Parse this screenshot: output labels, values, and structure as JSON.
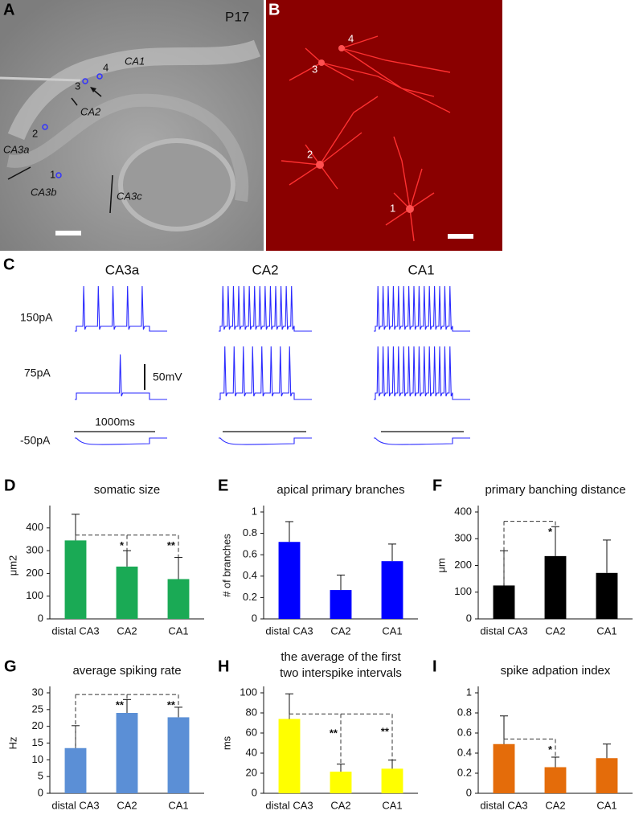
{
  "panel_labels": [
    "A",
    "B",
    "C",
    "D",
    "E",
    "F",
    "G",
    "H",
    "I"
  ],
  "panel_a": {
    "age": "P17",
    "regions": [
      "CA1",
      "CA2",
      "CA3a",
      "CA3b",
      "CA3c"
    ],
    "cells": [
      "1",
      "2",
      "3",
      "4"
    ]
  },
  "panel_b": {
    "cells": [
      "1",
      "2",
      "3",
      "4"
    ]
  },
  "panel_c": {
    "columns": [
      "CA3a",
      "CA2",
      "CA1"
    ],
    "rows": [
      "150pA",
      "75pA",
      "-50pA"
    ],
    "scale_voltage": "50mV",
    "scale_time": "1000ms"
  },
  "chart_data": [
    {
      "type": "bar",
      "title": "somatic size",
      "ylabel": "μm2",
      "categories": [
        "distal CA3",
        "CA2",
        "CA1"
      ],
      "values": [
        345,
        230,
        175
      ],
      "errors": [
        115,
        70,
        95
      ],
      "color": "#1aaa55",
      "ylim": [
        0,
        470
      ],
      "yticks": [
        0,
        100,
        200,
        300,
        400
      ],
      "significance": [
        {
          "from": 0,
          "to": 1,
          "label": "*"
        },
        {
          "from": 0,
          "to": 2,
          "label": "**"
        }
      ]
    },
    {
      "type": "bar",
      "title": "apical primary branches",
      "ylabel": "# of branches",
      "categories": [
        "distal CA3",
        "CA2",
        "CA1"
      ],
      "values": [
        0.72,
        0.27,
        0.54
      ],
      "errors": [
        0.19,
        0.14,
        0.16
      ],
      "color": "#0000ff",
      "ylim": [
        0,
        1
      ],
      "yticks": [
        0,
        0.2,
        0.4,
        0.6,
        0.8,
        1
      ]
    },
    {
      "type": "bar",
      "title": "primary banching distance",
      "ylabel": "μm",
      "categories": [
        "distal CA3",
        "CA2",
        "CA1"
      ],
      "values": [
        125,
        235,
        172
      ],
      "errors": [
        130,
        110,
        123
      ],
      "color": "#000000",
      "ylim": [
        0,
        400
      ],
      "yticks": [
        0,
        100,
        200,
        300,
        400
      ],
      "significance": [
        {
          "from": 0,
          "to": 1,
          "label": "*"
        }
      ]
    },
    {
      "type": "bar",
      "title": "average spiking rate",
      "ylabel": "Hz",
      "categories": [
        "distal CA3",
        "CA2",
        "CA1"
      ],
      "values": [
        13.5,
        24,
        22.7
      ],
      "errors": [
        6.7,
        4,
        3
      ],
      "color": "#5b8fd6",
      "ylim": [
        0,
        30
      ],
      "yticks": [
        0,
        5,
        10,
        15,
        20,
        25,
        30
      ],
      "significance": [
        {
          "from": 0,
          "to": 1,
          "label": "**"
        },
        {
          "from": 0,
          "to": 2,
          "label": "**"
        }
      ]
    },
    {
      "type": "bar",
      "title": [
        "the average of the first",
        "two interspike intervals"
      ],
      "ylabel": "ms",
      "categories": [
        "distal CA3",
        "CA2",
        "CA1"
      ],
      "values": [
        74,
        21.5,
        24.5
      ],
      "errors": [
        25,
        7.5,
        8.5
      ],
      "color": "#ffff00",
      "ylim": [
        0,
        100
      ],
      "yticks": [
        0,
        20,
        40,
        60,
        80,
        100
      ],
      "significance": [
        {
          "from": 0,
          "to": 1,
          "label": "**"
        },
        {
          "from": 0,
          "to": 2,
          "label": "**"
        }
      ]
    },
    {
      "type": "bar",
      "title": "spike adpation index",
      "categories": [
        "distal CA3",
        "CA2",
        "CA1"
      ],
      "values": [
        0.49,
        0.26,
        0.35
      ],
      "errors": [
        0.28,
        0.1,
        0.14
      ],
      "color": "#e46c0a",
      "ylim": [
        0,
        1
      ],
      "yticks": [
        0,
        0.2,
        0.4,
        0.6,
        0.8,
        1
      ],
      "significance": [
        {
          "from": 0,
          "to": 1,
          "label": "*"
        }
      ]
    }
  ]
}
